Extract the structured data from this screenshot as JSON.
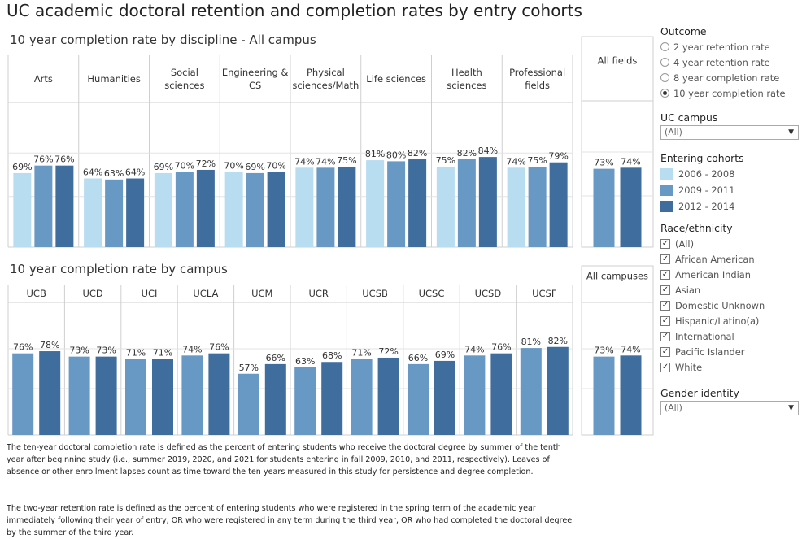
{
  "title": "UC academic doctoral retention and completion rates by entry cohorts",
  "colors": {
    "c1": "#b8dcf0",
    "c2": "#6899c4",
    "c3": "#3f6d9e",
    "grid": "#e3e3e3",
    "border": "#cfcfcf"
  },
  "chart_data": [
    {
      "type": "bar",
      "title": "10 year completion rate by discipline - All campus",
      "series_names": [
        "2006 - 2008",
        "2009 - 2011",
        "2012 - 2014"
      ],
      "ylim": [
        0,
        100
      ],
      "panels": [
        {
          "label": "Arts",
          "series": [
            0,
            1,
            2
          ],
          "values": [
            69,
            76,
            76
          ],
          "labels": [
            "69%",
            "76%",
            "76%"
          ]
        },
        {
          "label": "Humanities",
          "series": [
            0,
            1,
            2
          ],
          "values": [
            64,
            63,
            64
          ],
          "labels": [
            "64%",
            "63%",
            "64%"
          ]
        },
        {
          "label": "Social sciences",
          "series": [
            0,
            1,
            2
          ],
          "values": [
            69,
            70,
            72
          ],
          "labels": [
            "69%",
            "70%",
            "72%"
          ]
        },
        {
          "label": "Engineering & CS",
          "series": [
            0,
            1,
            2
          ],
          "values": [
            70,
            69,
            70
          ],
          "labels": [
            "70%",
            "69%",
            "70%"
          ]
        },
        {
          "label": "Physical sciences/Math",
          "series": [
            0,
            1,
            2
          ],
          "values": [
            74,
            74,
            75
          ],
          "labels": [
            "74%",
            "74%",
            "75%"
          ]
        },
        {
          "label": "Life sciences",
          "series": [
            0,
            1,
            2
          ],
          "values": [
            81,
            80,
            82
          ],
          "labels": [
            "81%",
            "80%",
            "82%"
          ]
        },
        {
          "label": "Health sciences",
          "series": [
            0,
            1,
            2
          ],
          "values": [
            75,
            82,
            84
          ],
          "labels": [
            "75%",
            "82%",
            "84%"
          ]
        },
        {
          "label": "Professional fields",
          "series": [
            0,
            1,
            2
          ],
          "values": [
            74,
            75,
            79
          ],
          "labels": [
            "74%",
            "75%",
            "79%"
          ]
        }
      ],
      "total": {
        "label": "All fields",
        "series": [
          1,
          2
        ],
        "values": [
          73,
          74
        ],
        "labels": [
          "73%",
          "74%"
        ]
      }
    },
    {
      "type": "bar",
      "title": "10 year completion rate by campus",
      "series_names": [
        "2009 - 2011",
        "2012 - 2014"
      ],
      "ylim": [
        0,
        100
      ],
      "panels": [
        {
          "label": "UCB",
          "series": [
            1,
            2
          ],
          "values": [
            76,
            78
          ],
          "labels": [
            "76%",
            "78%"
          ]
        },
        {
          "label": "UCD",
          "series": [
            1,
            2
          ],
          "values": [
            73,
            73
          ],
          "labels": [
            "73%",
            "73%"
          ]
        },
        {
          "label": "UCI",
          "series": [
            1,
            2
          ],
          "values": [
            71,
            71
          ],
          "labels": [
            "71%",
            "71%"
          ]
        },
        {
          "label": "UCLA",
          "series": [
            1,
            2
          ],
          "values": [
            74,
            76
          ],
          "labels": [
            "74%",
            "76%"
          ]
        },
        {
          "label": "UCM",
          "series": [
            1,
            2
          ],
          "values": [
            57,
            66
          ],
          "labels": [
            "57%",
            "66%"
          ]
        },
        {
          "label": "UCR",
          "series": [
            1,
            2
          ],
          "values": [
            63,
            68
          ],
          "labels": [
            "63%",
            "68%"
          ]
        },
        {
          "label": "UCSB",
          "series": [
            1,
            2
          ],
          "values": [
            71,
            72
          ],
          "labels": [
            "71%",
            "72%"
          ]
        },
        {
          "label": "UCSC",
          "series": [
            1,
            2
          ],
          "values": [
            66,
            69
          ],
          "labels": [
            "66%",
            "69%"
          ]
        },
        {
          "label": "UCSD",
          "series": [
            1,
            2
          ],
          "values": [
            74,
            76
          ],
          "labels": [
            "74%",
            "76%"
          ]
        },
        {
          "label": "UCSF",
          "series": [
            1,
            2
          ],
          "values": [
            81,
            82
          ],
          "labels": [
            "81%",
            "82%"
          ]
        }
      ],
      "total": {
        "label": "All campuses",
        "series": [
          1,
          2
        ],
        "values": [
          73,
          74
        ],
        "labels": [
          "73%",
          "74%"
        ]
      }
    }
  ],
  "notes": [
    "The ten-year doctoral completion rate is defined as the percent of entering students who receive the doctoral degree by summer of the tenth year after beginning study (i.e., summer 2019, 2020, and 2021 for students entering in fall 2009, 2010, and 2011, respectively). Leaves of absence or other enrollment lapses count as time toward the ten years measured in this study for persistence and degree completion.",
    "The two-year retention rate is defined as the percent of entering students who were registered in the spring term of the academic year immediately following their year of entry, OR who were registered in any term during the third year, OR who had completed the doctoral degree by the summer of the third year."
  ],
  "sidebar": {
    "outcome_title": "Outcome",
    "outcomes": [
      "2 year retention rate",
      "4 year retention rate",
      "8 year completion rate",
      "10 year completion rate"
    ],
    "campus_title": "UC campus",
    "campus_value": "(All)",
    "cohorts_title": "Entering cohorts",
    "cohorts": [
      "2006 - 2008",
      "2009 - 2011",
      "2012 - 2014"
    ],
    "race_title": "Race/ethnicity",
    "races": [
      "(All)",
      "African American",
      "American Indian",
      "Asian",
      "Domestic Unknown",
      "Hispanic/Latino(a)",
      "International",
      "Pacific Islander",
      "White"
    ],
    "gender_title": "Gender identity",
    "gender_value": "(All)"
  }
}
